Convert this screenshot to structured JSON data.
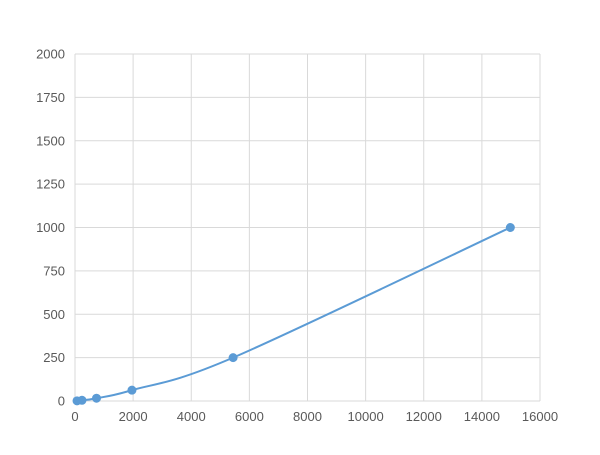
{
  "chart_data": {
    "type": "scatter",
    "title": "",
    "xlabel": "",
    "ylabel": "",
    "xlim": [
      0,
      16000
    ],
    "ylim": [
      0,
      2000
    ],
    "xticks": [
      "0",
      "2000",
      "4000",
      "6000",
      "8000",
      "10000",
      "12000",
      "14000",
      "16000"
    ],
    "yticks": [
      "0",
      "250",
      "500",
      "750",
      "1000",
      "1250",
      "1500",
      "1750",
      "2000"
    ],
    "grid": true,
    "legend": "none",
    "series": [
      {
        "x": [
          70,
          240,
          740,
          1960,
          5440,
          14980
        ],
        "y": [
          1,
          4,
          16,
          62.5,
          250,
          1000
        ],
        "color": "#5b9bd5",
        "smoothed_line": true,
        "markers": "circle"
      }
    ]
  }
}
